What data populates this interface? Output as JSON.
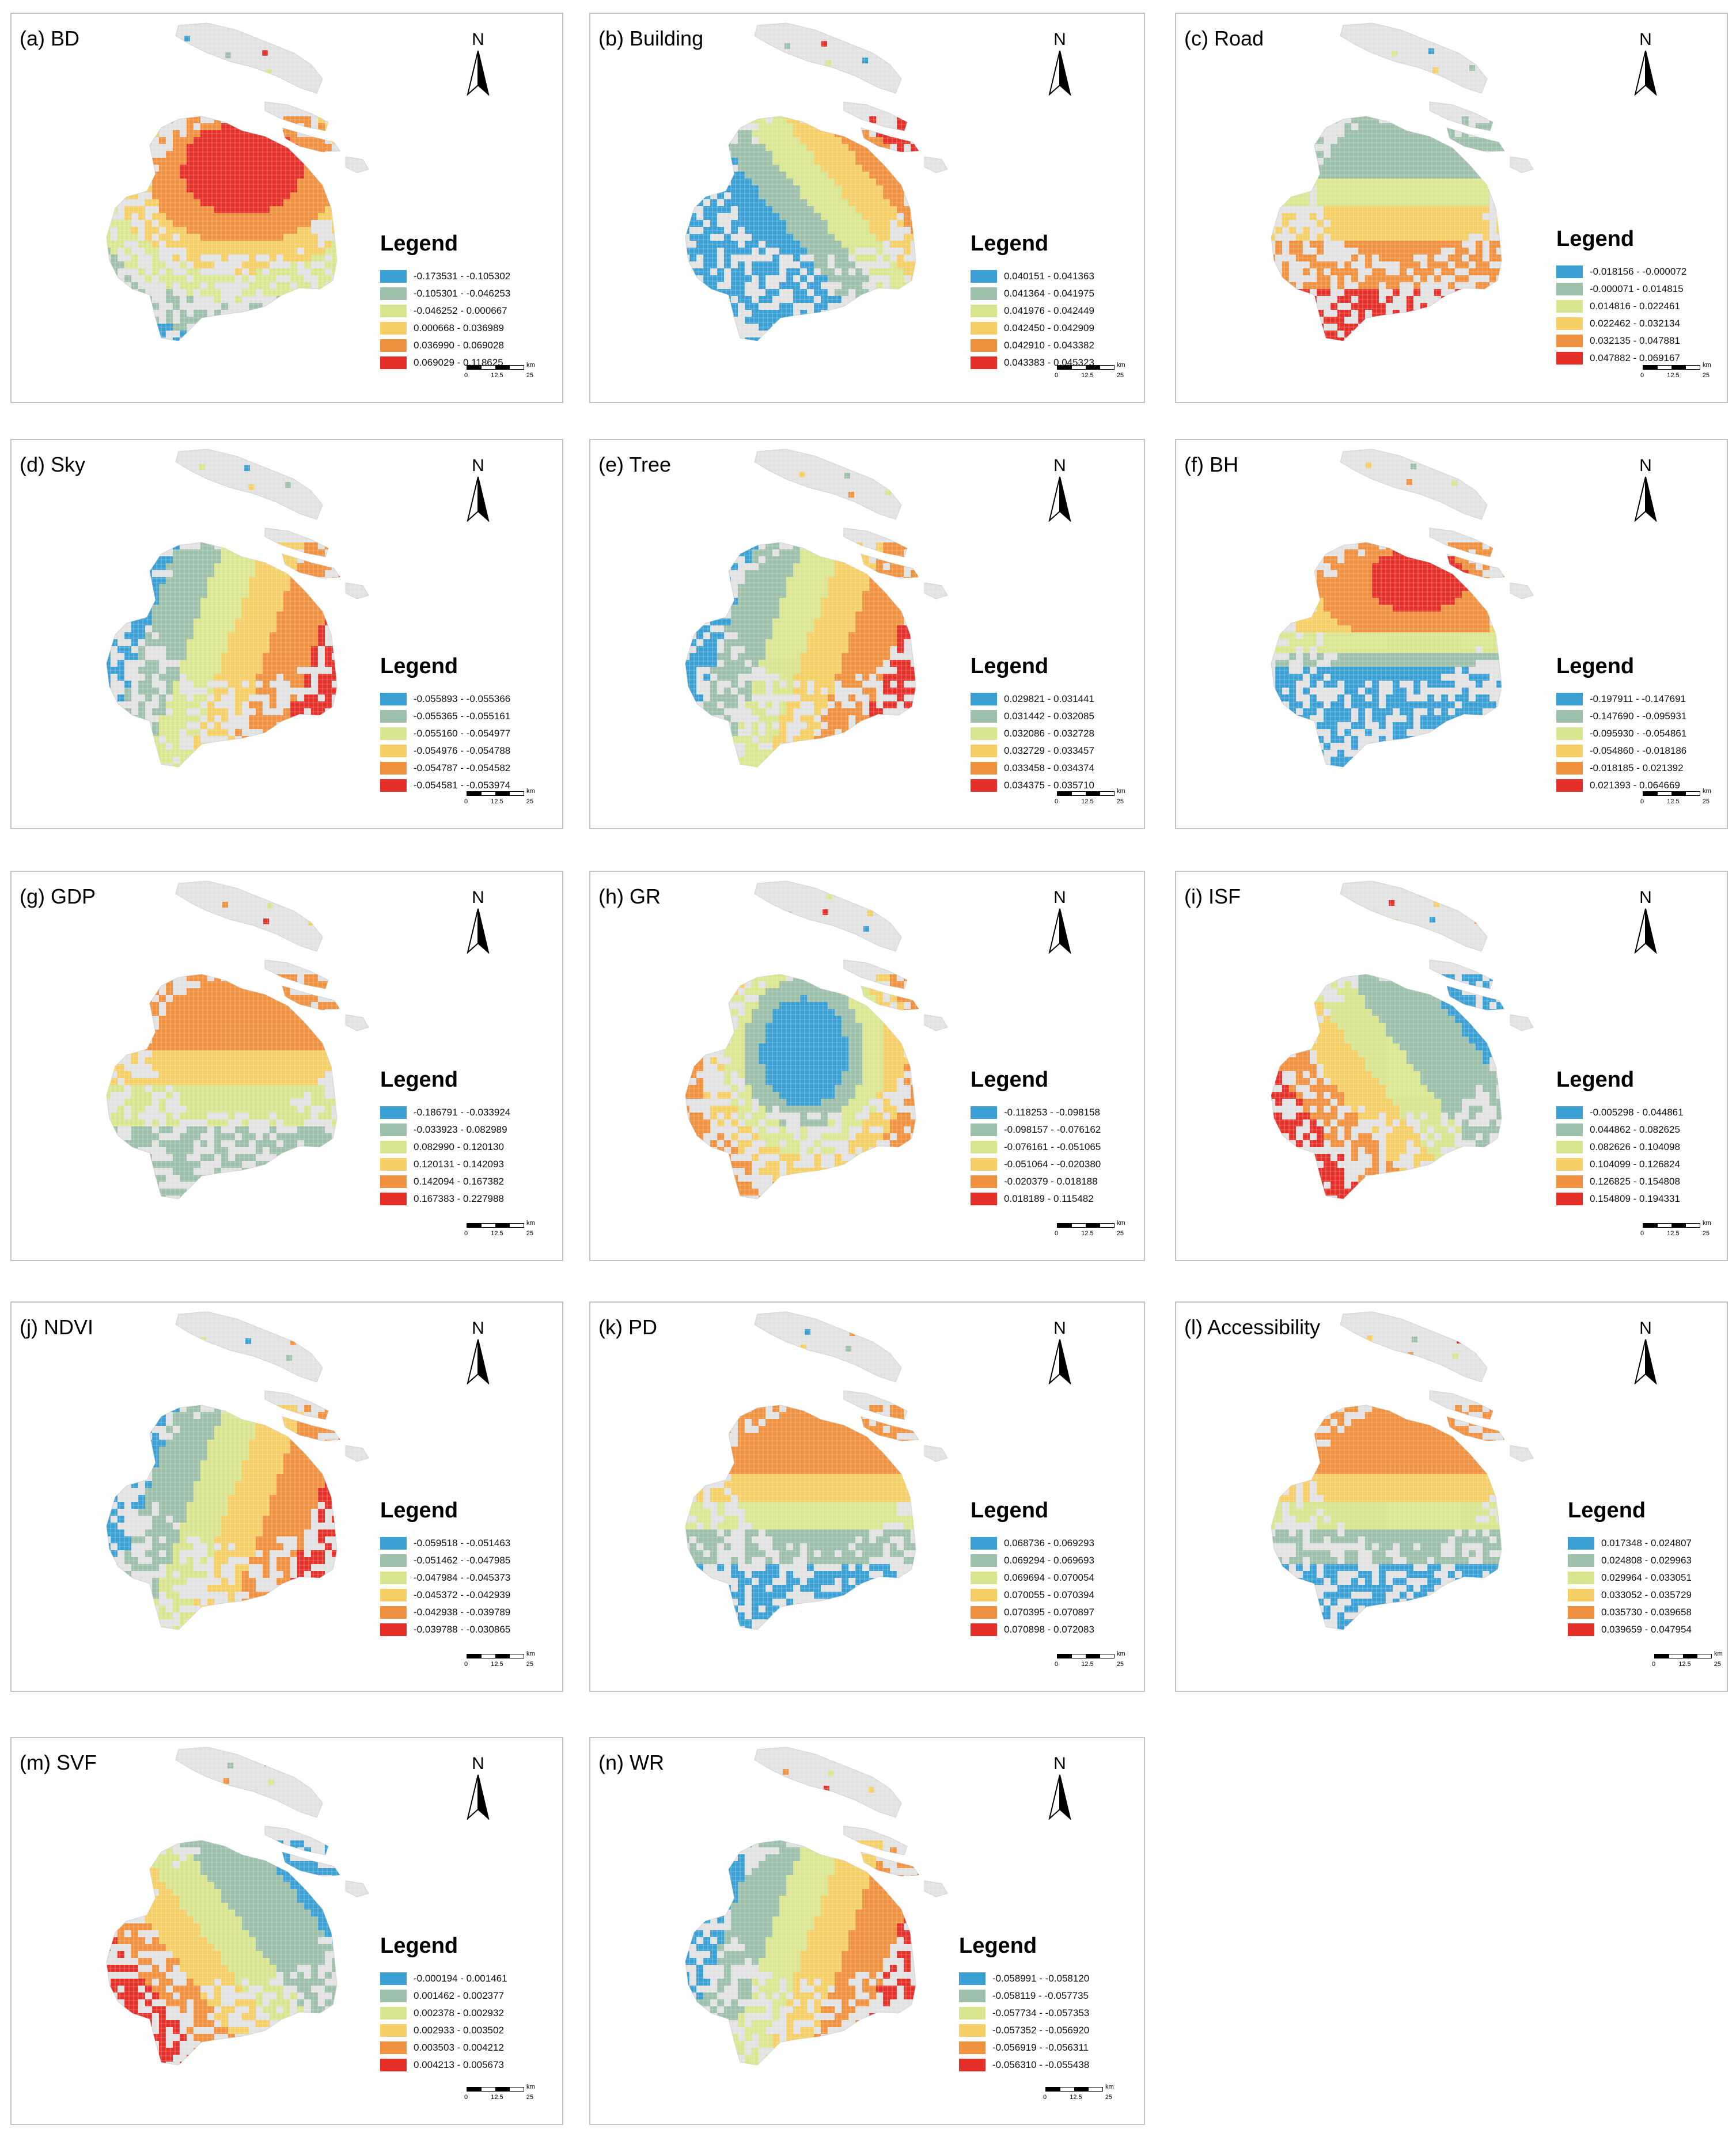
{
  "north_label": "N",
  "legend_title": "Legend",
  "scale": {
    "unit": "km",
    "ticks": [
      "0",
      "12.5",
      "25"
    ]
  },
  "palette": [
    "#3a9fd2",
    "#9cc0a9",
    "#d9e58f",
    "#f5cf65",
    "#f0913f",
    "#e5302a"
  ],
  "panels": [
    {
      "title": "(a) BD",
      "map_pattern": "radial-red-upper-center",
      "legend": [
        "-0.173531 - -0.105302",
        "-0.105301 - -0.046253",
        "-0.046252 - 0.000667",
        "0.000668 - 0.036989",
        "0.036990 - 0.069028",
        "0.069029 - 0.118625"
      ]
    },
    {
      "title": "(b) Building",
      "map_pattern": "diagonal-bands-red-northeast",
      "legend": [
        "0.040151 - 0.041363",
        "0.041364 - 0.041975",
        "0.041976 - 0.042449",
        "0.042450 - 0.042909",
        "0.042910 - 0.043382",
        "0.043383 - 0.045323"
      ]
    },
    {
      "title": "(c) Road",
      "map_pattern": "horizontal-bands-red-south",
      "legend": [
        "-0.018156 - -0.000072",
        "-0.000071 - 0.014815",
        "0.014816 - 0.022461",
        "0.022462 - 0.032134",
        "0.032135 - 0.047881",
        "0.047882 - 0.069167"
      ]
    },
    {
      "title": "(d) Sky",
      "map_pattern": "diagonal-bands-blue-west-red-east",
      "legend": [
        "-0.055893 - -0.055366",
        "-0.055365 - -0.055161",
        "-0.055160 - -0.054977",
        "-0.054976 - -0.054788",
        "-0.054787 - -0.054582",
        "-0.054581 - -0.053974"
      ]
    },
    {
      "title": "(e) Tree",
      "map_pattern": "diagonal-bands-blue-west-red-east",
      "legend": [
        "0.029821 - 0.031441",
        "0.031442 - 0.032085",
        "0.032086 - 0.032728",
        "0.032729 - 0.033457",
        "0.033458 - 0.034374",
        "0.034375 - 0.035710"
      ]
    },
    {
      "title": "(f) BH",
      "map_pattern": "radial-red-upper-center-blue-south",
      "legend": [
        "-0.197911 - -0.147691",
        "-0.147690 - -0.095931",
        "-0.095930 - -0.054861",
        "-0.054860 - -0.018186",
        "-0.018185 - 0.021392",
        "0.021393 - 0.064669"
      ]
    },
    {
      "title": "(g) GDP",
      "map_pattern": "orange-north-green-south",
      "legend": [
        "-0.186791 - -0.033924",
        "-0.033923 - 0.082989",
        "0.082990 - 0.120130",
        "0.120131 - 0.142093",
        "0.142094 - 0.167382",
        "0.167383 - 0.227988"
      ]
    },
    {
      "title": "(h) GR",
      "map_pattern": "radial-blue-center",
      "legend": [
        "-0.118253 - -0.098158",
        "-0.098157 - -0.076162",
        "-0.076161 - -0.051065",
        "-0.051064 - -0.020380",
        "-0.020379 - 0.018188",
        "0.018189 - 0.115482"
      ]
    },
    {
      "title": "(i) ISF",
      "map_pattern": "diagonal-bands-red-southwest",
      "legend": [
        "-0.005298 - 0.044861",
        "0.044862 - 0.082625",
        "0.082626 - 0.104098",
        "0.104099 - 0.126824",
        "0.126825 - 0.154808",
        "0.154809 - 0.194331"
      ]
    },
    {
      "title": "(j) NDVI",
      "map_pattern": "diagonal-bands-blue-west-red-east",
      "legend": [
        "-0.059518 - -0.051463",
        "-0.051462 - -0.047985",
        "-0.047984 - -0.045373",
        "-0.045372 - -0.042939",
        "-0.042938 - -0.039789",
        "-0.039788 - -0.030865"
      ]
    },
    {
      "title": "(k) PD",
      "map_pattern": "horizontal-bands-orange-north-blue-south",
      "legend": [
        "0.068736 - 0.069293",
        "0.069294 - 0.069693",
        "0.069694 - 0.070054",
        "0.070055 - 0.070394",
        "0.070395 - 0.070897",
        "0.070898 - 0.072083"
      ]
    },
    {
      "title": "(l) Accessibility",
      "map_pattern": "horizontal-bands-orange-north-blue-south",
      "legend": [
        "0.017348 - 0.024807",
        "0.024808 - 0.029963",
        "0.029964 - 0.033051",
        "0.033052 - 0.035729",
        "0.035730 - 0.039658",
        "0.039659 - 0.047954"
      ]
    },
    {
      "title": "(m) SVF",
      "map_pattern": "diagonal-bands-red-southwest",
      "legend": [
        "-0.000194 - 0.001461",
        "0.001462 - 0.002377",
        "0.002378 - 0.002932",
        "0.002933 - 0.003502",
        "0.003503 - 0.004212",
        "0.004213 - 0.005673"
      ]
    },
    {
      "title": "(n) WR",
      "map_pattern": "diagonal-bands-blue-west-red-east",
      "legend": [
        "-0.058991 - -0.058120",
        "-0.058119 - -0.057735",
        "-0.057734 - -0.057353",
        "-0.057352 - -0.056920",
        "-0.056919 - -0.056311",
        "-0.056310 - -0.055438"
      ]
    }
  ]
}
